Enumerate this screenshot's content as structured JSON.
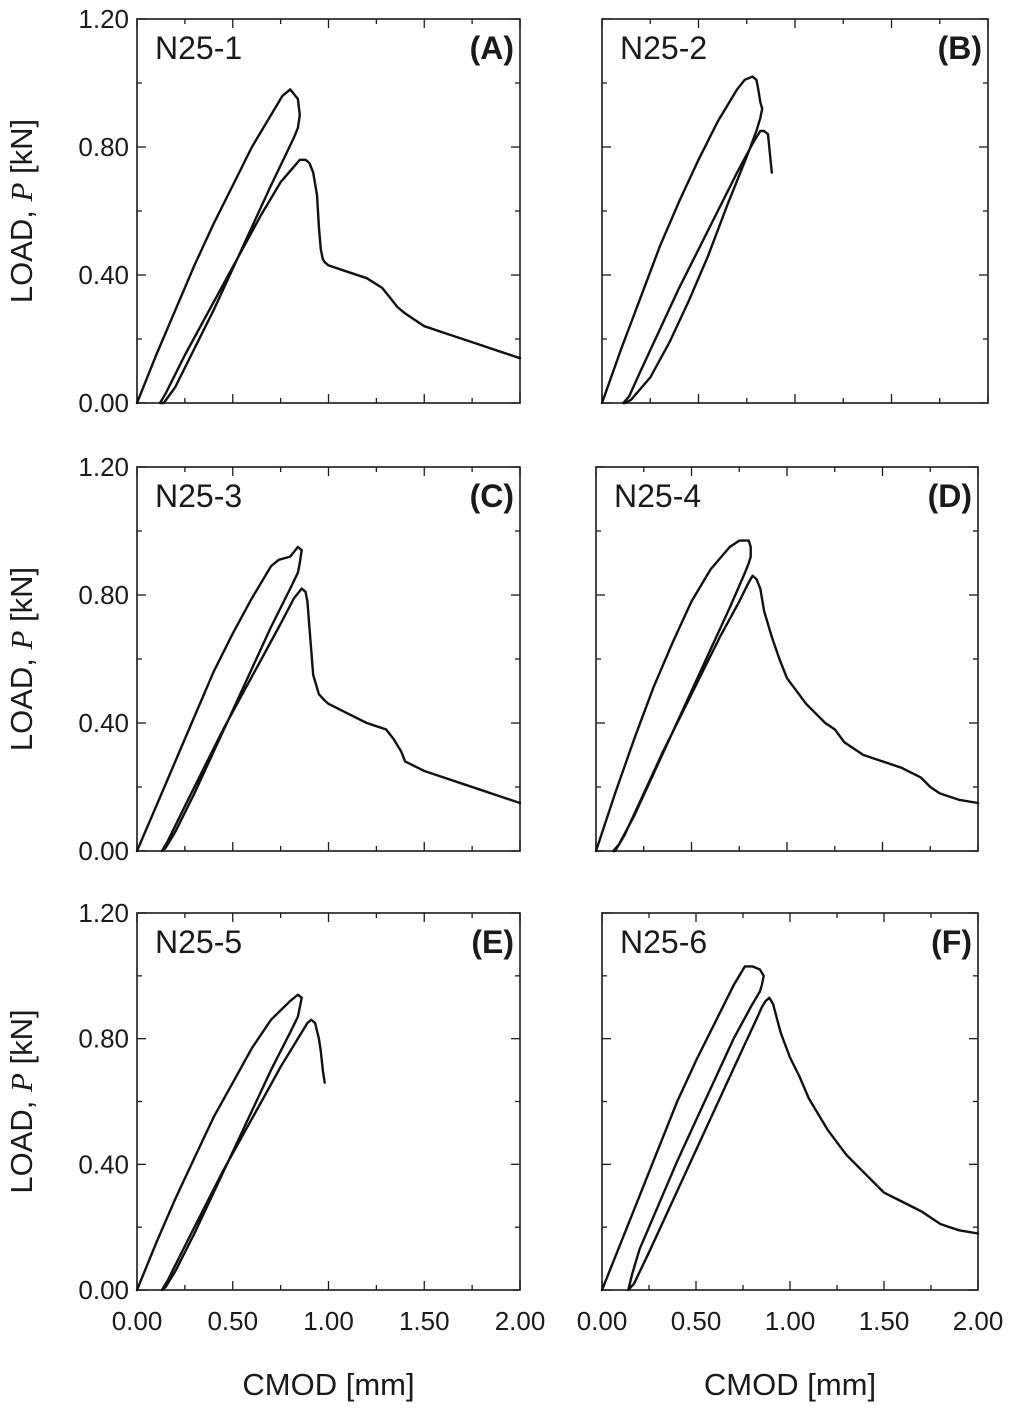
{
  "figure": {
    "x_tick_labels": [
      "0.00",
      "0.50",
      "1.00",
      "1.50",
      "2.00"
    ],
    "y_tick_labels": [
      "0.00",
      "0.40",
      "0.80",
      "1.20"
    ],
    "xlabel": "CMOD [mm]",
    "ylabel_prefix": "LOAD, ",
    "ylabel_var": "P",
    "ylabel_unit": " [kN]"
  },
  "chart_data": [
    {
      "type": "line",
      "panel": "(A)",
      "specimen": "N25-1",
      "xlabel": "",
      "ylabel": "LOAD, P [kN]",
      "xlim": [
        0,
        2.0
      ],
      "ylim": [
        0,
        1.2
      ],
      "series": [
        {
          "x": [
            0.0,
            0.1,
            0.2,
            0.3,
            0.4,
            0.5,
            0.6,
            0.7,
            0.76,
            0.8,
            0.84,
            0.85,
            0.84,
            0.82,
            0.78,
            0.7,
            0.6,
            0.5,
            0.4,
            0.3,
            0.2,
            0.14,
            0.12,
            0.15,
            0.25,
            0.35,
            0.45,
            0.55,
            0.65,
            0.75,
            0.85,
            0.88,
            0.9,
            0.92,
            0.94,
            0.95,
            0.96,
            0.97,
            0.98,
            1.0,
            1.1,
            1.2,
            1.28,
            1.32,
            1.36,
            1.4,
            1.5,
            1.6,
            1.7,
            1.8,
            1.9,
            2.0
          ],
          "y": [
            0.0,
            0.15,
            0.29,
            0.43,
            0.56,
            0.68,
            0.8,
            0.9,
            0.96,
            0.98,
            0.95,
            0.9,
            0.86,
            0.83,
            0.78,
            0.68,
            0.55,
            0.42,
            0.29,
            0.17,
            0.05,
            0.0,
            0.0,
            0.03,
            0.15,
            0.26,
            0.37,
            0.48,
            0.59,
            0.69,
            0.76,
            0.76,
            0.75,
            0.72,
            0.65,
            0.55,
            0.48,
            0.45,
            0.44,
            0.43,
            0.41,
            0.39,
            0.36,
            0.33,
            0.3,
            0.28,
            0.24,
            0.22,
            0.2,
            0.18,
            0.16,
            0.14
          ]
        }
      ]
    },
    {
      "type": "line",
      "panel": "(B)",
      "specimen": "N25-2",
      "xlabel": "",
      "ylabel": "",
      "xlim": [
        0,
        2.0
      ],
      "ylim": [
        0,
        1.2
      ],
      "series": [
        {
          "x": [
            0.0,
            0.1,
            0.2,
            0.3,
            0.4,
            0.5,
            0.6,
            0.7,
            0.74,
            0.78,
            0.8,
            0.81,
            0.82,
            0.83,
            0.82,
            0.8,
            0.75,
            0.65,
            0.55,
            0.45,
            0.35,
            0.25,
            0.15,
            0.12,
            0.11,
            0.14,
            0.2,
            0.3,
            0.4,
            0.5,
            0.6,
            0.7,
            0.78,
            0.82,
            0.84,
            0.86,
            0.87,
            0.88
          ],
          "y": [
            0.0,
            0.17,
            0.33,
            0.49,
            0.63,
            0.76,
            0.88,
            0.98,
            1.01,
            1.02,
            1.01,
            0.98,
            0.94,
            0.92,
            0.89,
            0.85,
            0.77,
            0.62,
            0.46,
            0.32,
            0.19,
            0.08,
            0.01,
            0.0,
            0.0,
            0.02,
            0.1,
            0.23,
            0.36,
            0.48,
            0.6,
            0.72,
            0.81,
            0.85,
            0.85,
            0.84,
            0.78,
            0.72
          ]
        }
      ]
    },
    {
      "type": "line",
      "panel": "(C)",
      "specimen": "N25-3",
      "xlabel": "",
      "ylabel": "LOAD, P [kN]",
      "xlim": [
        0,
        2.0
      ],
      "ylim": [
        0,
        1.2
      ],
      "series": [
        {
          "x": [
            0.0,
            0.1,
            0.2,
            0.3,
            0.4,
            0.5,
            0.6,
            0.7,
            0.72,
            0.74,
            0.8,
            0.84,
            0.86,
            0.85,
            0.84,
            0.8,
            0.7,
            0.6,
            0.5,
            0.4,
            0.3,
            0.2,
            0.15,
            0.13,
            0.16,
            0.25,
            0.35,
            0.45,
            0.55,
            0.65,
            0.75,
            0.82,
            0.86,
            0.88,
            0.89,
            0.9,
            0.92,
            0.95,
            0.98,
            1.0,
            1.1,
            1.2,
            1.3,
            1.34,
            1.38,
            1.4,
            1.5,
            1.6,
            1.7,
            1.8,
            1.9,
            2.0
          ],
          "y": [
            0.0,
            0.14,
            0.28,
            0.42,
            0.56,
            0.68,
            0.79,
            0.89,
            0.9,
            0.91,
            0.92,
            0.95,
            0.94,
            0.9,
            0.87,
            0.82,
            0.7,
            0.57,
            0.44,
            0.31,
            0.18,
            0.06,
            0.01,
            0.0,
            0.03,
            0.14,
            0.26,
            0.38,
            0.49,
            0.6,
            0.71,
            0.79,
            0.82,
            0.81,
            0.78,
            0.7,
            0.55,
            0.49,
            0.47,
            0.46,
            0.43,
            0.4,
            0.38,
            0.35,
            0.31,
            0.28,
            0.25,
            0.23,
            0.21,
            0.19,
            0.17,
            0.15
          ]
        }
      ]
    },
    {
      "type": "line",
      "panel": "(D)",
      "specimen": "N25-4",
      "xlabel": "",
      "ylabel": "",
      "xlim": [
        0,
        2.0
      ],
      "ylim": [
        0,
        1.2
      ],
      "series": [
        {
          "x": [
            0.0,
            0.1,
            0.2,
            0.3,
            0.4,
            0.5,
            0.6,
            0.7,
            0.75,
            0.8,
            0.81,
            0.81,
            0.8,
            0.78,
            0.7,
            0.6,
            0.5,
            0.4,
            0.3,
            0.2,
            0.12,
            0.09,
            0.1,
            0.15,
            0.25,
            0.35,
            0.45,
            0.55,
            0.65,
            0.75,
            0.8,
            0.82,
            0.84,
            0.86,
            0.88,
            0.92,
            0.96,
            1.0,
            1.1,
            1.2,
            1.25,
            1.3,
            1.4,
            1.5,
            1.6,
            1.7,
            1.75,
            1.8,
            1.85,
            1.9,
            2.0
          ],
          "y": [
            0.0,
            0.18,
            0.35,
            0.51,
            0.65,
            0.78,
            0.88,
            0.95,
            0.97,
            0.97,
            0.95,
            0.92,
            0.9,
            0.87,
            0.76,
            0.63,
            0.5,
            0.37,
            0.24,
            0.11,
            0.02,
            0.0,
            0.0,
            0.05,
            0.18,
            0.31,
            0.43,
            0.55,
            0.67,
            0.78,
            0.84,
            0.86,
            0.85,
            0.82,
            0.75,
            0.67,
            0.6,
            0.54,
            0.46,
            0.4,
            0.38,
            0.34,
            0.3,
            0.28,
            0.26,
            0.23,
            0.2,
            0.18,
            0.17,
            0.16,
            0.15
          ]
        }
      ]
    },
    {
      "type": "line",
      "panel": "(E)",
      "specimen": "N25-5",
      "xlabel": "CMOD [mm]",
      "ylabel": "LOAD, P [kN]",
      "xlim": [
        0,
        2.0
      ],
      "ylim": [
        0,
        1.2
      ],
      "series": [
        {
          "x": [
            0.0,
            0.1,
            0.2,
            0.3,
            0.4,
            0.5,
            0.6,
            0.7,
            0.75,
            0.8,
            0.84,
            0.86,
            0.85,
            0.84,
            0.8,
            0.7,
            0.6,
            0.5,
            0.4,
            0.3,
            0.2,
            0.15,
            0.13,
            0.16,
            0.25,
            0.35,
            0.45,
            0.55,
            0.65,
            0.75,
            0.82,
            0.86,
            0.89,
            0.91,
            0.93,
            0.95,
            0.96,
            0.97,
            0.98
          ],
          "y": [
            0.0,
            0.15,
            0.29,
            0.42,
            0.55,
            0.66,
            0.77,
            0.86,
            0.89,
            0.92,
            0.94,
            0.93,
            0.9,
            0.87,
            0.82,
            0.7,
            0.57,
            0.44,
            0.31,
            0.18,
            0.06,
            0.01,
            0.0,
            0.03,
            0.14,
            0.26,
            0.38,
            0.49,
            0.6,
            0.71,
            0.78,
            0.82,
            0.85,
            0.86,
            0.85,
            0.8,
            0.76,
            0.7,
            0.66
          ]
        }
      ]
    },
    {
      "type": "line",
      "panel": "(F)",
      "specimen": "N25-6",
      "xlabel": "CMOD [mm]",
      "ylabel": "",
      "xlim": [
        0,
        2.0
      ],
      "ylim": [
        0,
        1.2
      ],
      "series": [
        {
          "x": [
            0.0,
            0.1,
            0.2,
            0.3,
            0.4,
            0.5,
            0.6,
            0.7,
            0.74,
            0.76,
            0.8,
            0.84,
            0.86,
            0.85,
            0.84,
            0.8,
            0.7,
            0.6,
            0.5,
            0.4,
            0.3,
            0.2,
            0.16,
            0.14,
            0.17,
            0.25,
            0.35,
            0.45,
            0.55,
            0.65,
            0.75,
            0.82,
            0.85,
            0.87,
            0.89,
            0.91,
            0.95,
            1.0,
            1.05,
            1.1,
            1.2,
            1.3,
            1.4,
            1.5,
            1.6,
            1.7,
            1.75,
            1.8,
            1.85,
            1.9,
            2.0
          ],
          "y": [
            0.0,
            0.15,
            0.3,
            0.45,
            0.6,
            0.73,
            0.85,
            0.97,
            1.01,
            1.03,
            1.03,
            1.02,
            1.0,
            0.97,
            0.95,
            0.91,
            0.8,
            0.67,
            0.54,
            0.41,
            0.27,
            0.13,
            0.05,
            0.0,
            0.02,
            0.12,
            0.25,
            0.38,
            0.51,
            0.64,
            0.77,
            0.86,
            0.9,
            0.92,
            0.93,
            0.91,
            0.82,
            0.74,
            0.68,
            0.61,
            0.51,
            0.43,
            0.37,
            0.31,
            0.28,
            0.25,
            0.23,
            0.21,
            0.2,
            0.19,
            0.18
          ]
        }
      ]
    }
  ]
}
